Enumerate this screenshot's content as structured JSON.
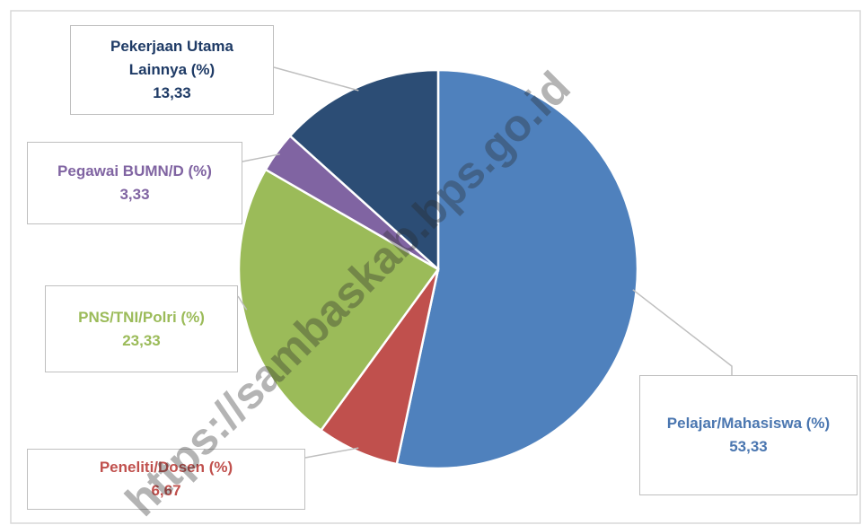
{
  "chart_data": {
    "type": "pie",
    "categories": [
      "Pelajar/Mahasiswa (%)",
      "Peneliti/Dosen (%)",
      "PNS/TNI/Polri (%)",
      "Pegawai BUMN/D (%)",
      "Pekerjaan Utama Lainnya (%)"
    ],
    "values": [
      53.33,
      6.67,
      23.33,
      3.33,
      13.33
    ],
    "value_labels": [
      "53,33",
      "6,67",
      "23,33",
      "3,33",
      "13,33"
    ],
    "colors": [
      "#4f81bd",
      "#c0504d",
      "#9bbb59",
      "#8064a2",
      "#2c4d75"
    ],
    "label_colors": [
      "#4a76b0",
      "#c0504d",
      "#9bbb59",
      "#8064a2",
      "#1f3b66"
    ],
    "watermark": "https://sambaskab.bps.go.id"
  }
}
